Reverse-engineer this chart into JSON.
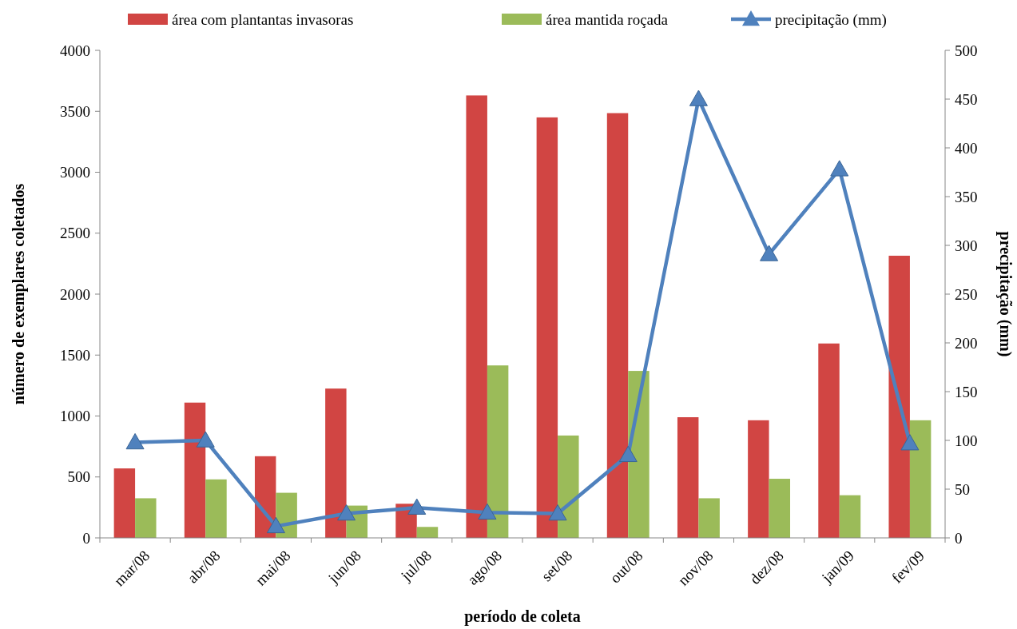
{
  "chart_data": {
    "type": "bar",
    "xlabel": "período de coleta",
    "ylabel": "número de exemplares coletados",
    "y2label": "precipitação (mm)",
    "categories": [
      "mar/08",
      "abr/08",
      "mai/08",
      "jun/08",
      "jul/08",
      "ago/08",
      "set/08",
      "out/08",
      "nov/08",
      "dez/08",
      "jan/09",
      "fev/09"
    ],
    "series": [
      {
        "name": "área com plantantas invasoras",
        "color": "#d14543",
        "values": [
          570,
          1110,
          670,
          1225,
          280,
          3630,
          3450,
          3485,
          990,
          965,
          1595,
          2315
        ]
      },
      {
        "name": "área mantida roçada",
        "color": "#9bbb59",
        "values": [
          325,
          480,
          370,
          265,
          90,
          1415,
          840,
          1370,
          325,
          485,
          350,
          965
        ]
      },
      {
        "name": "precipitação (mm)",
        "type": "line",
        "axis": "y2",
        "color": "#4f81bd",
        "marker": "triangle",
        "values": [
          98,
          100,
          12,
          25,
          31,
          26,
          25,
          85,
          450,
          291,
          378,
          97
        ]
      }
    ],
    "ylim": [
      0,
      4000
    ],
    "yticks": [
      0,
      500,
      1000,
      1500,
      2000,
      2500,
      3000,
      3500,
      4000
    ],
    "y2lim": [
      0,
      500
    ],
    "y2ticks": [
      0,
      50,
      100,
      150,
      200,
      250,
      300,
      350,
      400,
      450,
      500
    ],
    "grid": false,
    "legend": "top"
  }
}
